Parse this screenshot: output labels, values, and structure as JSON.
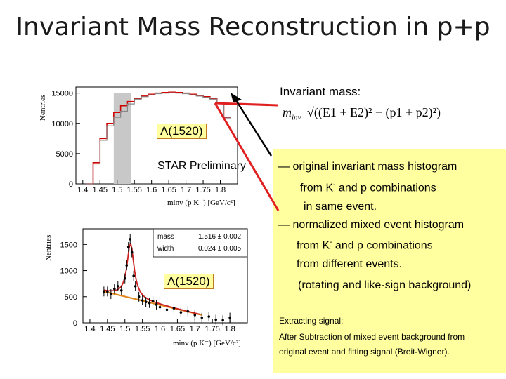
{
  "title": "Invariant Mass Reconstruction in p+p",
  "formula_heading": "Invariant mass:",
  "formula": {
    "lhs": "m",
    "lhs_sub": "inv",
    "rhs": "√((E1 + E2)² − (p1 + p2)²)"
  },
  "panel_top": {
    "label": "Λ(1520)",
    "preliminary": "STAR Preliminary",
    "ylabel": "N",
    "ylabel_sub": "entries",
    "xlabel": "m",
    "xlabel_sub": "inv",
    "xlabel_rest": " (p K⁻) [GeV/c²]",
    "y_ticks": [
      "15000",
      "10000",
      "5000",
      "0"
    ],
    "x_ticks": [
      "1.4",
      "1.45",
      "1.5",
      "1.55",
      "1.6",
      "1.65",
      "1.7",
      "1.75",
      "1.8"
    ]
  },
  "panel_bottom": {
    "label": "Λ(1520)",
    "ylabel": "N",
    "ylabel_sub": "entries",
    "xlabel": "m",
    "xlabel_sub": "inv",
    "xlabel_rest": " (p K⁻) [GeV/c²]",
    "y_ticks": [
      "1500",
      "1000",
      "500",
      "0"
    ],
    "x_ticks": [
      "1.4",
      "1.45",
      "1.5",
      "1.55",
      "1.6",
      "1.65",
      "1.7",
      "1.75",
      "1.8"
    ],
    "fit_rows": [
      {
        "name": "mass",
        "value": "1.516 ± 0.002"
      },
      {
        "name": "width",
        "value": "0.024 ± 0.005"
      }
    ]
  },
  "notes": {
    "line1": "— original invariant mass histogram",
    "line2_a": "from  K",
    "line2_sup": "-",
    "line2_b": " and p combinations",
    "line3": "in same event.",
    "line4": "— normalized mixed event histogram",
    "line5_a": "from  K",
    "line5_sup": "-",
    "line5_b": " and p combinations",
    "line6": "from different events.",
    "line7": "(rotating and like-sign background)",
    "extract1": "Extracting signal:",
    "extract2": "After Subtraction of mixed event background from",
    "extract3": "original event and fitting signal (Breit-Wigner)."
  },
  "colors": {
    "original_hist": "#d00000",
    "mixed_hist": "#888888",
    "arrow_red": "#e02020",
    "fit_curve": "#cc2020",
    "background_fit": "#e08a20",
    "note_bg": "#ffffa0"
  },
  "chart_data": [
    {
      "type": "area",
      "title": "",
      "xlabel": "m_inv (p K⁻) [GeV/c²]",
      "ylabel": "N_entries",
      "xlim": [
        1.38,
        1.85
      ],
      "ylim": [
        0,
        16000
      ],
      "x": [
        1.42,
        1.44,
        1.46,
        1.48,
        1.5,
        1.52,
        1.54,
        1.56,
        1.58,
        1.6,
        1.62,
        1.64,
        1.66,
        1.68,
        1.7,
        1.72,
        1.74,
        1.76,
        1.78,
        1.8,
        1.82
      ],
      "series": [
        {
          "values": [
            0,
            3500,
            7500,
            10000,
            11800,
            12900,
            13600,
            14100,
            14500,
            14800,
            15000,
            15100,
            15150,
            15100,
            15000,
            14800,
            14600,
            14400,
            14100,
            13400,
            11000
          ]
        },
        {
          "values": [
            0,
            3300,
            7200,
            9600,
            11000,
            12000,
            13200,
            14000,
            14400,
            14700,
            14900,
            15000,
            15050,
            15000,
            14900,
            14700,
            14500,
            14300,
            14000,
            13300,
            10900
          ]
        }
      ]
    },
    {
      "type": "scatter",
      "title": "",
      "xlabel": "m_inv (p K⁻) [GeV/c²]",
      "ylabel": "N_entries",
      "xlim": [
        1.38,
        1.85
      ],
      "ylim": [
        0,
        1800
      ],
      "x": [
        1.44,
        1.45,
        1.46,
        1.47,
        1.48,
        1.49,
        1.5,
        1.505,
        1.51,
        1.515,
        1.52,
        1.525,
        1.53,
        1.54,
        1.55,
        1.56,
        1.57,
        1.58,
        1.59,
        1.6,
        1.62,
        1.64,
        1.66,
        1.68,
        1.7,
        1.72,
        1.74,
        1.76,
        1.78,
        1.8
      ],
      "values": [
        600,
        600,
        550,
        650,
        700,
        620,
        850,
        1100,
        1450,
        1600,
        1350,
        900,
        700,
        500,
        430,
        400,
        380,
        420,
        350,
        300,
        250,
        280,
        200,
        220,
        150,
        100,
        120,
        60,
        50,
        100
      ]
    }
  ]
}
